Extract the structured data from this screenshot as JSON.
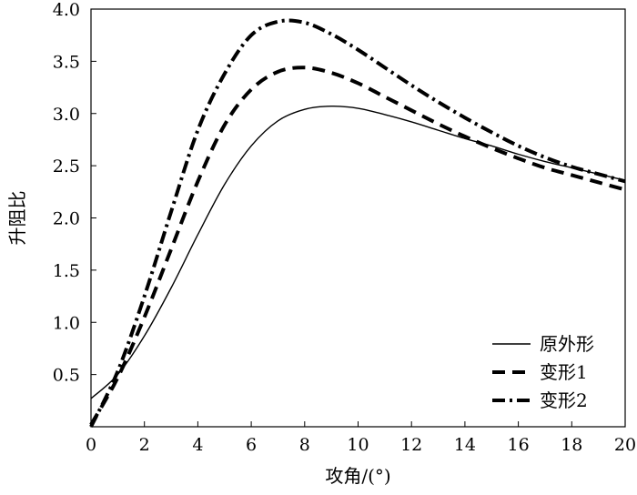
{
  "chart_data": {
    "type": "line",
    "title": "",
    "xlabel": "攻角/(°)",
    "ylabel": "升阻比",
    "xlim": [
      0,
      20
    ],
    "ylim": [
      0,
      4.0
    ],
    "xticks": [
      0,
      2,
      4,
      6,
      8,
      10,
      12,
      14,
      16,
      18,
      20
    ],
    "yticks": [
      0.5,
      1.0,
      1.5,
      2.0,
      2.5,
      3.0,
      3.5,
      4.0
    ],
    "ytick_labels": [
      "0.5",
      "1.0",
      "1.5",
      "2.0",
      "2.5",
      "3.0",
      "3.5",
      "4.0"
    ],
    "grid": false,
    "legend_position": "bottom-right",
    "series": [
      {
        "name": "原外形",
        "style": "solid",
        "color": "#000000",
        "x": [
          0,
          1,
          2,
          3,
          4,
          5,
          6,
          7,
          8,
          9,
          10,
          11,
          12,
          13,
          14,
          15,
          16,
          17,
          18,
          19,
          20
        ],
        "y": [
          0.27,
          0.5,
          0.87,
          1.33,
          1.84,
          2.32,
          2.69,
          2.93,
          3.04,
          3.07,
          3.05,
          2.99,
          2.92,
          2.84,
          2.76,
          2.69,
          2.61,
          2.54,
          2.48,
          2.42,
          2.36
        ]
      },
      {
        "name": "变形1",
        "style": "dashed",
        "color": "#000000",
        "x": [
          0,
          1,
          2,
          3,
          4,
          5,
          6,
          7,
          8,
          9,
          10,
          11,
          12,
          13,
          14,
          15,
          16,
          17,
          18,
          19,
          20
        ],
        "y": [
          0.02,
          0.47,
          1.05,
          1.7,
          2.35,
          2.89,
          3.23,
          3.4,
          3.44,
          3.39,
          3.29,
          3.16,
          3.03,
          2.9,
          2.78,
          2.67,
          2.57,
          2.48,
          2.41,
          2.34,
          2.27
        ]
      },
      {
        "name": "变形2",
        "style": "dashdot",
        "color": "#000000",
        "x": [
          0,
          1,
          2,
          3,
          4,
          5,
          6,
          7,
          8,
          9,
          10,
          11,
          12,
          13,
          14,
          15,
          16,
          17,
          18,
          19,
          20
        ],
        "y": [
          0.0,
          0.53,
          1.25,
          2.06,
          2.84,
          3.38,
          3.75,
          3.88,
          3.87,
          3.76,
          3.61,
          3.44,
          3.27,
          3.11,
          2.96,
          2.82,
          2.69,
          2.58,
          2.49,
          2.42,
          2.35
        ]
      }
    ]
  }
}
